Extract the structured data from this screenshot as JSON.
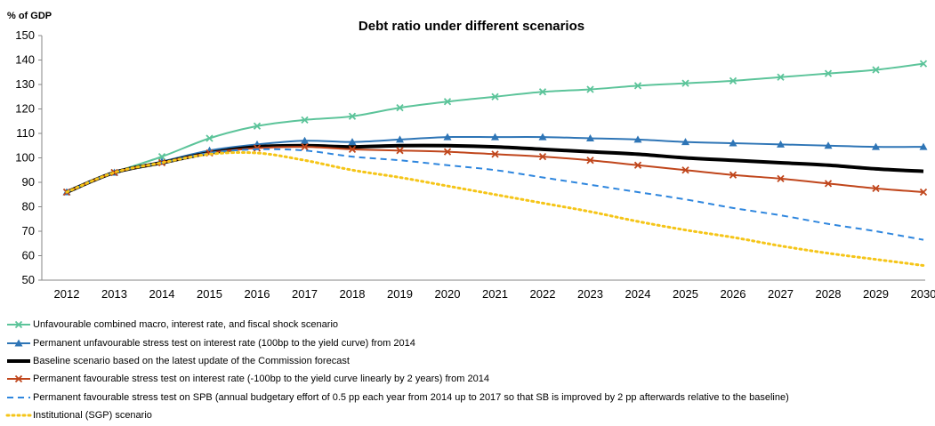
{
  "chart_data": {
    "type": "line",
    "title": "Debt ratio under different scenarios",
    "ylabel": "% of GDP",
    "xlabel": "",
    "ylim": [
      50,
      150
    ],
    "yticks": [
      50,
      60,
      70,
      80,
      90,
      100,
      110,
      120,
      130,
      140,
      150
    ],
    "grid": false,
    "legend_position": "bottom",
    "categories": [
      "2012",
      "2013",
      "2014",
      "2015",
      "2016",
      "2017",
      "2018",
      "2019",
      "2020",
      "2021",
      "2022",
      "2023",
      "2024",
      "2025",
      "2026",
      "2027",
      "2028",
      "2029",
      "2030"
    ],
    "series": [
      {
        "name": "Unfavourable combined macro, interest rate, and fiscal shock scenario",
        "color": "#5cc49a",
        "style": "solid",
        "width": 2,
        "marker": "x",
        "values": [
          86.0,
          94.0,
          100.5,
          108.0,
          113.0,
          115.5,
          117.0,
          120.5,
          123.0,
          125.0,
          127.0,
          128.0,
          129.5,
          130.5,
          131.5,
          133.0,
          134.5,
          136.0,
          138.5
        ]
      },
      {
        "name": "Permanent unfavourable stress test on interest rate (100bp to the yield curve) from 2014",
        "color": "#2e75b6",
        "style": "solid",
        "width": 2,
        "marker": "triangle",
        "values": [
          86.0,
          94.0,
          98.5,
          103.0,
          105.5,
          107.0,
          106.5,
          107.5,
          108.5,
          108.5,
          108.5,
          108.0,
          107.5,
          106.5,
          106.0,
          105.5,
          105.0,
          104.5,
          104.5
        ]
      },
      {
        "name": "Baseline scenario based on the latest update of the Commission forecast",
        "color": "#000000",
        "style": "solid",
        "width": 4,
        "marker": "none",
        "values": [
          86.0,
          94.0,
          98.0,
          102.0,
          104.5,
          105.0,
          104.5,
          105.0,
          105.0,
          104.5,
          103.5,
          102.5,
          101.5,
          100.0,
          99.0,
          98.0,
          97.0,
          95.5,
          94.5
        ]
      },
      {
        "name": "Permanent favourable stress test on interest rate (-100bp to the yield curve linearly by 2 years) from 2014",
        "color": "#c0461c",
        "style": "solid",
        "width": 2,
        "marker": "x",
        "values": [
          86.0,
          94.0,
          98.0,
          102.0,
          104.0,
          104.5,
          103.5,
          103.0,
          102.5,
          101.5,
          100.5,
          99.0,
          97.0,
          95.0,
          93.0,
          91.5,
          89.5,
          87.5,
          86.0
        ]
      },
      {
        "name": "Permanent favourable stress test on SPB (annual budgetary effort of 0.5 pp each year from 2014 up to 2017 so that SB is improved by 2 pp afterwards relative to the baseline)",
        "color": "#2e86de",
        "style": "dashed",
        "width": 2,
        "marker": "none",
        "values": [
          86.0,
          94.0,
          98.0,
          102.0,
          103.5,
          103.0,
          100.5,
          99.0,
          97.0,
          95.0,
          92.0,
          89.0,
          86.0,
          83.0,
          79.5,
          76.5,
          73.0,
          70.0,
          66.5
        ]
      },
      {
        "name": "Institutional (SGP) scenario",
        "color": "#f5c518",
        "style": "dotted",
        "width": 3,
        "marker": "none",
        "values": [
          86.0,
          94.0,
          98.0,
          101.5,
          102.0,
          99.0,
          95.0,
          92.0,
          88.5,
          85.0,
          81.5,
          78.0,
          74.0,
          70.5,
          67.5,
          64.0,
          61.0,
          58.5,
          56.0
        ]
      }
    ]
  }
}
